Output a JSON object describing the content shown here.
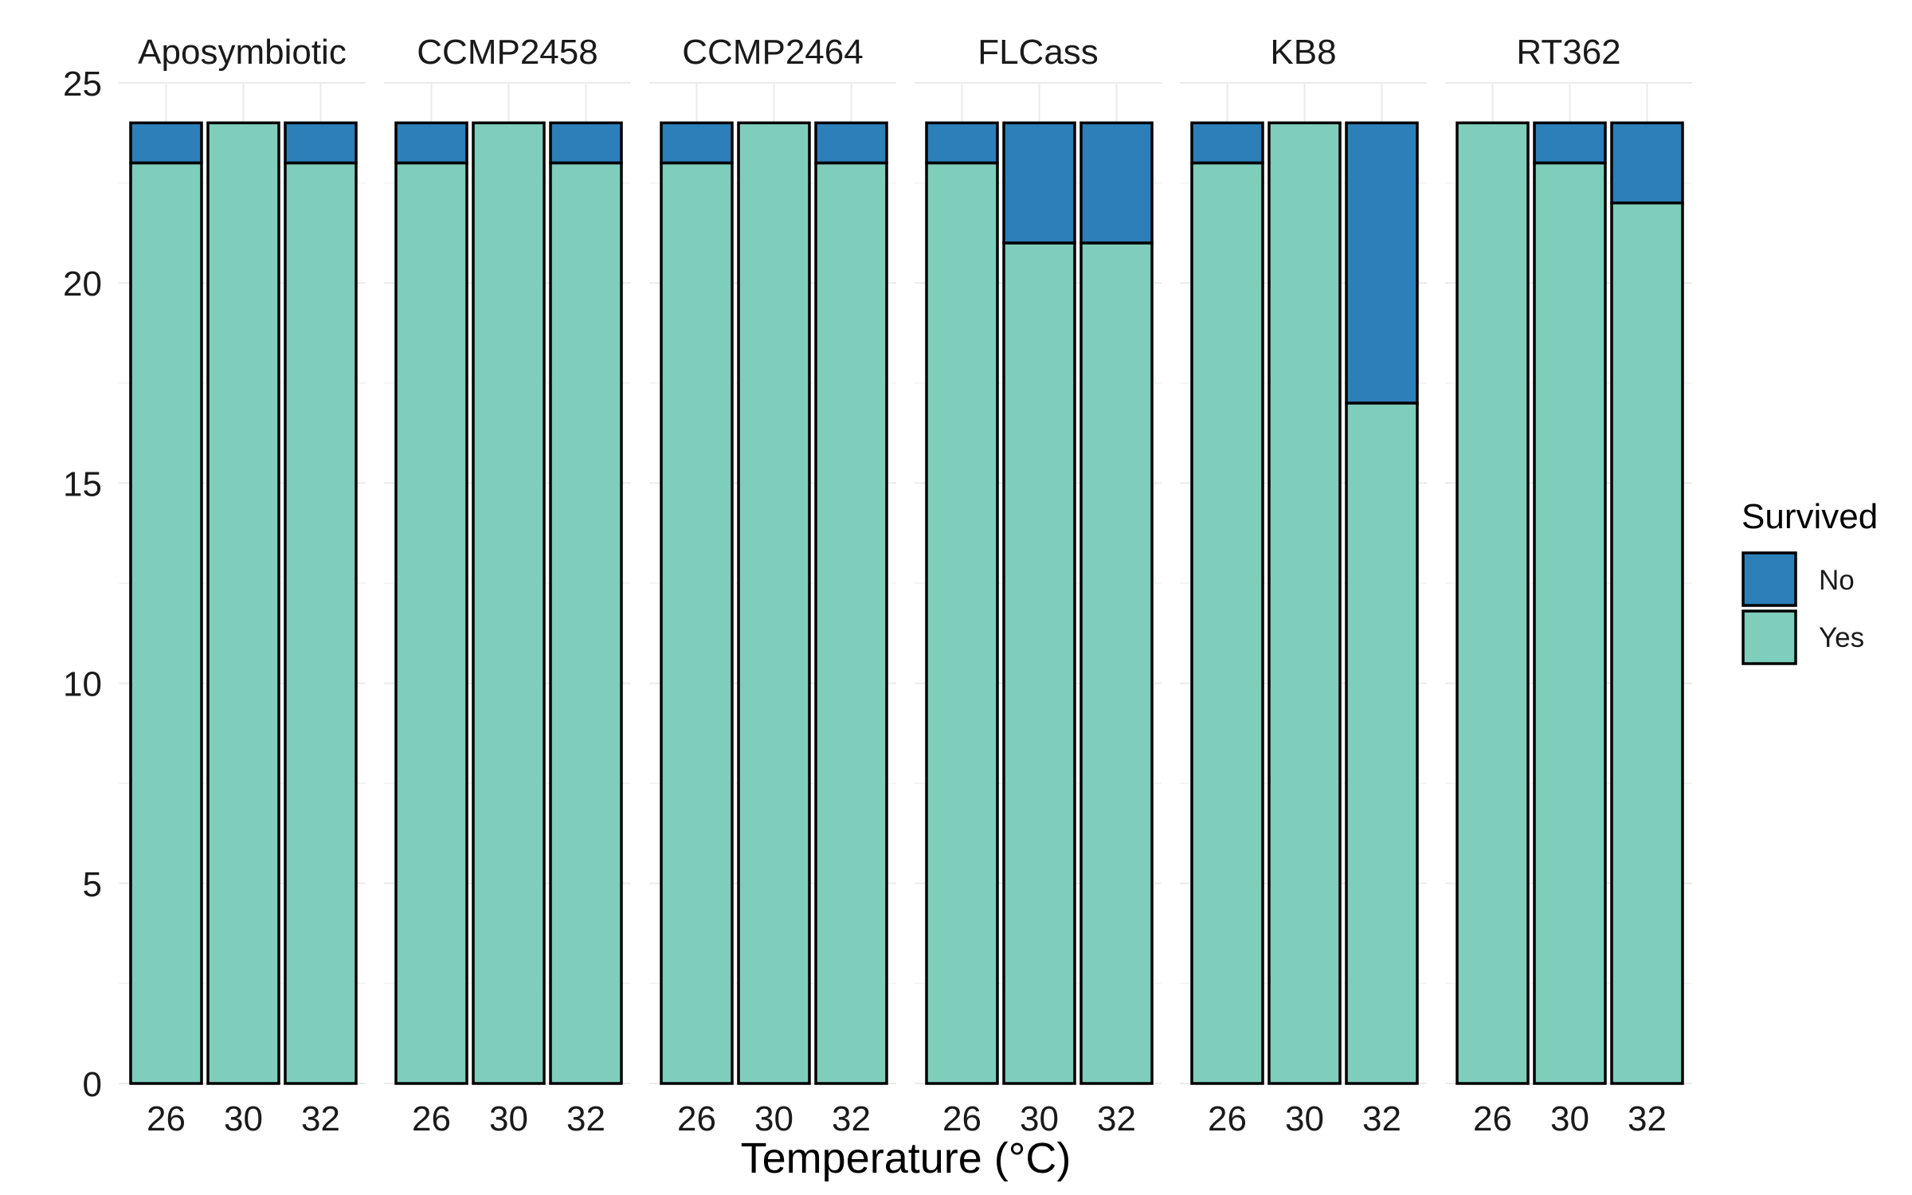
{
  "chart_data": {
    "type": "bar",
    "stacked": true,
    "faceted": true,
    "xlabel": "Temperature (°C)",
    "ylabel": "",
    "ylim": [
      0,
      25
    ],
    "y_ticks": [
      0,
      5,
      10,
      15,
      20,
      25
    ],
    "categories": [
      "26",
      "30",
      "32"
    ],
    "grid": true,
    "legend": {
      "title": "Survived",
      "placement": "right",
      "entries": [
        {
          "label": "No",
          "color": "#2c7fb8"
        },
        {
          "label": "Yes",
          "color": "#7fcdbb"
        }
      ]
    },
    "colors": {
      "No": "#2c7fb8",
      "Yes": "#7fcdbb"
    },
    "facets": [
      {
        "name": "Aposymbiotic",
        "yes": [
          23,
          24,
          23
        ],
        "no": [
          1,
          0,
          1
        ]
      },
      {
        "name": "CCMP2458",
        "yes": [
          23,
          24,
          23
        ],
        "no": [
          1,
          0,
          1
        ]
      },
      {
        "name": "CCMP2464",
        "yes": [
          23,
          24,
          23
        ],
        "no": [
          1,
          0,
          1
        ]
      },
      {
        "name": "FLCass",
        "yes": [
          23,
          21,
          21
        ],
        "no": [
          1,
          3,
          3
        ]
      },
      {
        "name": "KB8",
        "yes": [
          23,
          24,
          17
        ],
        "no": [
          1,
          0,
          7
        ]
      },
      {
        "name": "RT362",
        "yes": [
          24,
          23,
          22
        ],
        "no": [
          0,
          1,
          2
        ]
      }
    ]
  }
}
